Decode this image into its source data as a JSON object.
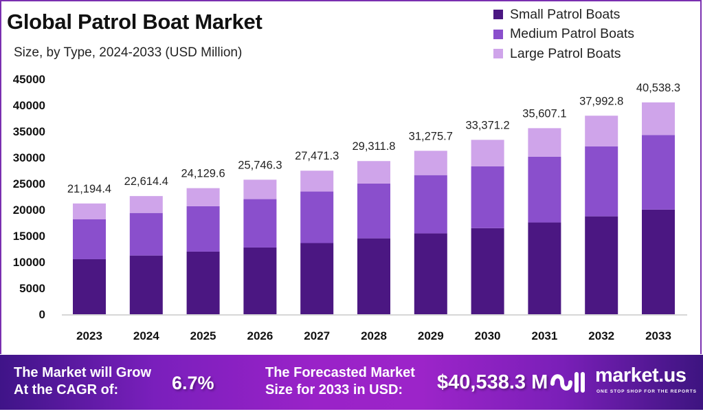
{
  "header": {
    "title": "Global Patrol Boat Market",
    "subtitle": "Size, by Type, 2024-2033 (USD Million)"
  },
  "legend": [
    {
      "label": "Small Patrol Boats",
      "color": "#4b1782"
    },
    {
      "label": "Medium Patrol Boats",
      "color": "#8a4fcc"
    },
    {
      "label": "Large Patrol Boats",
      "color": "#cfa4ea"
    }
  ],
  "chart_data": {
    "type": "bar",
    "stacked": true,
    "title": "Global Patrol Boat Market",
    "subtitle": "Size, by Type, 2024-2033 (USD Million)",
    "xlabel": "",
    "ylabel": "",
    "ylim": [
      0,
      45000
    ],
    "yticks": [
      0,
      5000,
      10000,
      15000,
      20000,
      25000,
      30000,
      35000,
      40000,
      45000
    ],
    "ytick_labels": [
      "0",
      "5000",
      "10000",
      "15000",
      "20000",
      "25000",
      "30000",
      "35000",
      "40000",
      "45000"
    ],
    "grid": false,
    "legend_position": "top-right",
    "categories": [
      "2023",
      "2024",
      "2025",
      "2026",
      "2027",
      "2028",
      "2029",
      "2030",
      "2031",
      "2032",
      "2033"
    ],
    "series": [
      {
        "name": "Small Patrol Boats",
        "color": "#4b1782",
        "values": [
          10530,
          11230,
          11980,
          12770,
          13620,
          14520,
          15470,
          16470,
          17560,
          18730,
          20020
        ]
      },
      {
        "name": "Medium Patrol Boats",
        "color": "#8a4fcc",
        "values": [
          7630,
          8150,
          8690,
          9260,
          9860,
          10490,
          11150,
          11840,
          12590,
          13400,
          14280
        ]
      },
      {
        "name": "Large Patrol Boats",
        "color": "#cfa4ea",
        "values": [
          3034.4,
          3234.4,
          3459.6,
          3716.3,
          3991.3,
          4301.8,
          4655.7,
          5061.2,
          5457.1,
          5862.8,
          6238.3
        ]
      }
    ],
    "totals": [
      21194.4,
      22614.4,
      24129.6,
      25746.3,
      27471.3,
      29311.8,
      31275.7,
      33371.2,
      35607.1,
      37992.8,
      40538.3
    ],
    "total_labels": [
      "21,194.4",
      "22,614.4",
      "24,129.6",
      "25,746.3",
      "27,471.3",
      "29,311.8",
      "31,275.7",
      "33,371.2",
      "35,607.1",
      "37,992.8",
      "40,538.3"
    ]
  },
  "banner": {
    "cagr_text_line1": "The Market will Grow",
    "cagr_text_line2": "At the CAGR of:",
    "cagr_value": "6.7%",
    "forecast_text_line1": "The Forecasted Market",
    "forecast_text_line2": "Size for 2033 in USD:",
    "forecast_value": "$40,538.3 M",
    "brand_name": "market.us",
    "brand_tagline": "ONE STOP SHOP FOR THE REPORTS"
  }
}
